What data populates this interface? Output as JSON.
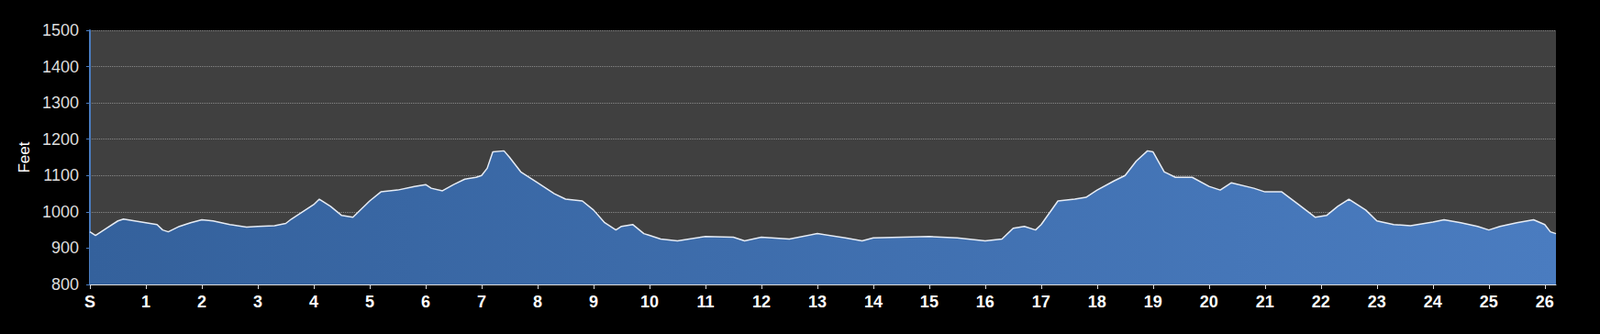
{
  "chart_data": {
    "type": "area",
    "ylabel": "Feet",
    "color": "#4a7cc0",
    "line_style": "solid",
    "grid": true,
    "xlim": [
      0,
      26.2
    ],
    "xticks": [
      {
        "value": 0,
        "label": "S"
      },
      1,
      2,
      3,
      4,
      5,
      6,
      7,
      8,
      9,
      10,
      11,
      12,
      13,
      14,
      15,
      16,
      17,
      18,
      19,
      20,
      21,
      22,
      23,
      24,
      25,
      26
    ],
    "ylim": [
      800,
      1500
    ],
    "yticks": [
      800,
      900,
      1000,
      1100,
      1200,
      1300,
      1400,
      1500
    ],
    "x": [
      0,
      0.1,
      0.2,
      0.3,
      0.5,
      0.6,
      0.8,
      1.0,
      1.2,
      1.3,
      1.4,
      1.6,
      1.8,
      2.0,
      2.2,
      2.5,
      2.8,
      3.0,
      3.3,
      3.5,
      3.6,
      3.8,
      4.0,
      4.1,
      4.3,
      4.5,
      4.7,
      5.0,
      5.2,
      5.5,
      5.8,
      6.0,
      6.1,
      6.3,
      6.5,
      6.7,
      6.9,
      7.0,
      7.1,
      7.2,
      7.4,
      7.5,
      7.7,
      8.0,
      8.3,
      8.5,
      8.8,
      9.0,
      9.2,
      9.4,
      9.5,
      9.7,
      9.9,
      10.0,
      10.2,
      10.5,
      11.0,
      11.5,
      11.7,
      12.0,
      12.5,
      13.0,
      13.5,
      13.8,
      14.0,
      14.5,
      15.0,
      15.5,
      16.0,
      16.3,
      16.5,
      16.7,
      16.9,
      17.0,
      17.3,
      17.6,
      17.8,
      18.0,
      18.3,
      18.5,
      18.7,
      18.9,
      19.0,
      19.2,
      19.4,
      19.7,
      20.0,
      20.2,
      20.4,
      20.8,
      21.0,
      21.3,
      21.6,
      21.9,
      22.1,
      22.3,
      22.5,
      22.8,
      23.0,
      23.3,
      23.6,
      24.0,
      24.2,
      24.5,
      24.8,
      25.0,
      25.2,
      25.5,
      25.8,
      26.0,
      26.1,
      26.2
    ],
    "values": [
      945,
      935,
      945,
      955,
      975,
      980,
      975,
      970,
      965,
      950,
      945,
      960,
      970,
      978,
      975,
      965,
      958,
      960,
      962,
      968,
      980,
      1000,
      1020,
      1035,
      1015,
      990,
      985,
      1030,
      1055,
      1060,
      1070,
      1075,
      1065,
      1058,
      1075,
      1090,
      1095,
      1100,
      1120,
      1165,
      1168,
      1150,
      1110,
      1080,
      1050,
      1035,
      1030,
      1005,
      970,
      950,
      960,
      965,
      940,
      935,
      925,
      920,
      932,
      930,
      920,
      930,
      925,
      940,
      928,
      920,
      928,
      930,
      932,
      928,
      920,
      925,
      955,
      960,
      950,
      965,
      1030,
      1035,
      1040,
      1060,
      1085,
      1100,
      1140,
      1168,
      1165,
      1110,
      1095,
      1095,
      1070,
      1060,
      1080,
      1065,
      1055,
      1055,
      1020,
      985,
      990,
      1015,
      1035,
      1005,
      975,
      965,
      962,
      972,
      978,
      970,
      960,
      950,
      960,
      970,
      978,
      965,
      945,
      940
    ]
  }
}
